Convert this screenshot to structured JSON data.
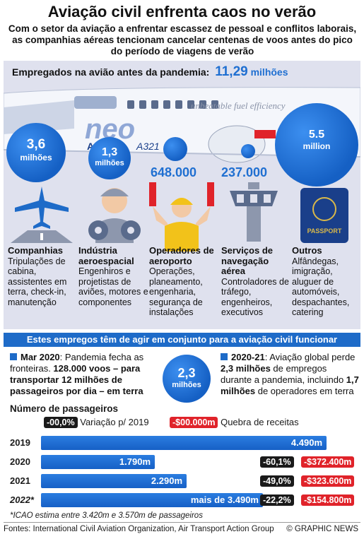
{
  "title": "Aviação civil enfrenta caos no verão",
  "subtitle": "Com o setor da aviação a enfrentar escassez de pessoal e conflitos laborais, as companhias aéreas tencionam cancelar centenas de voos antes do pico do período de viagens de verão",
  "employment": {
    "heading": "Empregados na avião antes da pandemia:",
    "total_value": "11,29",
    "total_unit": "milhões",
    "plane_text": "unbeatable fuel efficiency",
    "plane_brand": "AIRBUS",
    "plane_model": "A321"
  },
  "categories": [
    {
      "value": "3,6",
      "unit": "milhões",
      "heading": "Companhias",
      "text": "Tripulações de cabina, assistentes em terra, check-in, manutenção"
    },
    {
      "value": "1,3",
      "unit": "milhões",
      "heading": "Indústria aeroespacial",
      "text": "Engenhiros e projetistas de aviões, motores e componentes"
    },
    {
      "value": "648.000",
      "unit": "",
      "heading": "Operadores de aeroporto",
      "text": "Operações, planeamento, engenharia, segurança de instalações"
    },
    {
      "value": "237.000",
      "unit": "",
      "heading": "Serviços de navegação aérea",
      "text": "Controladores de tráfego, engenheiros, executivos"
    },
    {
      "value": "5.5",
      "unit": "million",
      "heading": "Outros",
      "text": "Alfândegas, imigração, aluguer de automóveis, despachantes, catering"
    }
  ],
  "banner": "Estes empregos têm de agir em conjunto para a aviação civil funcionar",
  "left_note": {
    "date": "Mar 2020",
    "text1": ": Pandemia fecha as fronteiras. ",
    "bold": "128.000 voos – para transportar 12 milhões de passageiros por dia – em terra"
  },
  "center_bubble": {
    "value": "2,3",
    "unit": "milhões"
  },
  "right_note": {
    "date": "2020-21",
    "t1": ": Aviação global perde ",
    "b1": "2,3 milhões",
    "t2": " de empregos durante a pandemia, incluindo ",
    "b2": "1,7 milhões",
    "t3": " de operadores em terra"
  },
  "passengers": {
    "title": "Número de passageiros",
    "legend_change_tag": "-00,0%",
    "legend_change_label": "Variação p/ 2019",
    "legend_loss_tag": "-$00.000m",
    "legend_loss_label": "Quebra de receitas"
  },
  "chart_data": {
    "type": "bar",
    "title": "Número de passageiros",
    "categories": [
      "2019",
      "2020",
      "2021",
      "2022*"
    ],
    "values": [
      4490,
      1790,
      2290,
      3490
    ],
    "value_labels": [
      "4.490m",
      "1.790m",
      "2.290m",
      "mais de 3.490m"
    ],
    "change_vs_2019": [
      "",
      "-60,1%",
      "-49,0%",
      "-22,2%"
    ],
    "revenue_loss": [
      "",
      "-$372.400m",
      "-$323.600m",
      "-$154.800m"
    ],
    "colors": {
      "bar": "#1e6bc8",
      "change": "#1a1a1a",
      "loss": "#e0232a"
    }
  },
  "note": "*ICAO estima entre 3.420m e 3.570m de passageiros",
  "footer": "Fontes: International Civil Aviation Organization, Air Transport Action Group",
  "credit": "© GRAPHIC NEWS",
  "colors": {
    "accent": "#1e6bc8",
    "panel": "#dfe1ee",
    "red": "#e0232a"
  }
}
